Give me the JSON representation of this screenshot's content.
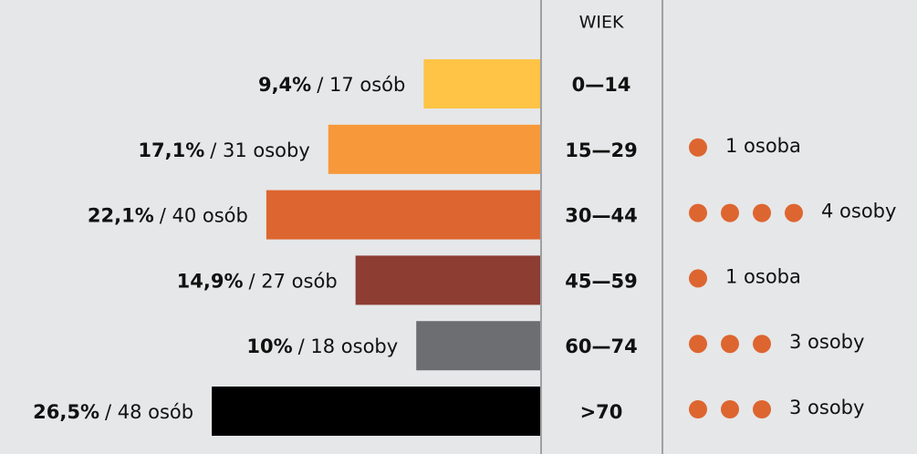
{
  "chart_data": {
    "type": "bar",
    "axis_label": "WIEK",
    "categories": [
      "0—14",
      "15—29",
      "30—44",
      "45—59",
      "60—74",
      ">70"
    ],
    "values": [
      9.4,
      17.1,
      22.1,
      14.9,
      10,
      26.5
    ],
    "value_labels": [
      "9,4%",
      "17,1%",
      "22,1%",
      "14,9%",
      "10%",
      "26,5%"
    ],
    "count_labels": [
      "/ 17 osób",
      "/ 31 osoby",
      "/ 40 osób",
      "/ 27 osób",
      "/ 18 osoby",
      "/ 48 osób"
    ],
    "colors": [
      "#ffc446",
      "#f7993a",
      "#dd6530",
      "#8e3d33",
      "#6d6e71",
      "#000000"
    ],
    "dots": {
      "color": "#dd6530",
      "values": [
        0,
        1,
        4,
        1,
        3,
        3
      ],
      "value_labels": [
        null,
        "1 osoba",
        "4 osoby",
        "1 osoba",
        "3 osoby",
        "3 osoby"
      ]
    }
  }
}
